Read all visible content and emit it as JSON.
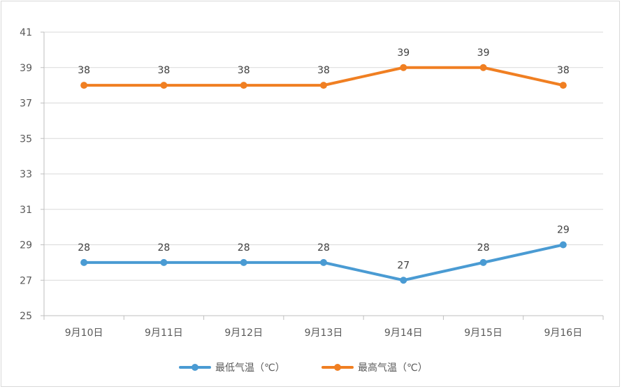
{
  "chart_data": {
    "type": "line",
    "categories": [
      "9月10日",
      "9月11日",
      "9月12日",
      "9月13日",
      "9月14日",
      "9月15日",
      "9月16日"
    ],
    "series": [
      {
        "name": "最低气温（℃）",
        "color": "#4a9bd3",
        "values": [
          28,
          28,
          28,
          28,
          27,
          28,
          29
        ]
      },
      {
        "name": "最高气温（℃）",
        "color": "#f07f22",
        "values": [
          38,
          38,
          38,
          38,
          39,
          39,
          38
        ]
      }
    ],
    "yticks": [
      25,
      27,
      29,
      31,
      33,
      35,
      37,
      39,
      41
    ],
    "ylim": [
      25,
      41
    ],
    "grid": true,
    "legend_position": "bottom",
    "data_labels": true
  }
}
